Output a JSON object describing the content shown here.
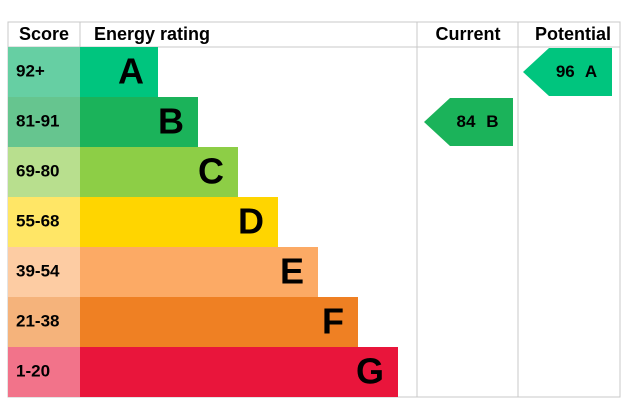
{
  "header": {
    "score": "Score",
    "energy_rating": "Energy rating",
    "current": "Current",
    "potential": "Potential"
  },
  "bands": [
    {
      "score": "92+",
      "letter": "A",
      "color": "#00c57e",
      "score_color": "#66cfa3"
    },
    {
      "score": "81-91",
      "letter": "B",
      "color": "#1bb35a",
      "score_color": "#66c58f"
    },
    {
      "score": "69-80",
      "letter": "C",
      "color": "#8dce46",
      "score_color": "#b8df8e"
    },
    {
      "score": "55-68",
      "letter": "D",
      "color": "#ffd500",
      "score_color": "#ffe666"
    },
    {
      "score": "39-54",
      "letter": "E",
      "color": "#fcaa65",
      "score_color": "#fdcca3"
    },
    {
      "score": "21-38",
      "letter": "F",
      "color": "#ef8023",
      "score_color": "#f5b37b"
    },
    {
      "score": "1-20",
      "letter": "G",
      "color": "#e9153b",
      "score_color": "#f2738a"
    }
  ],
  "current": {
    "value": 84,
    "letter": "B"
  },
  "potential": {
    "value": 96,
    "letter": "A"
  }
}
